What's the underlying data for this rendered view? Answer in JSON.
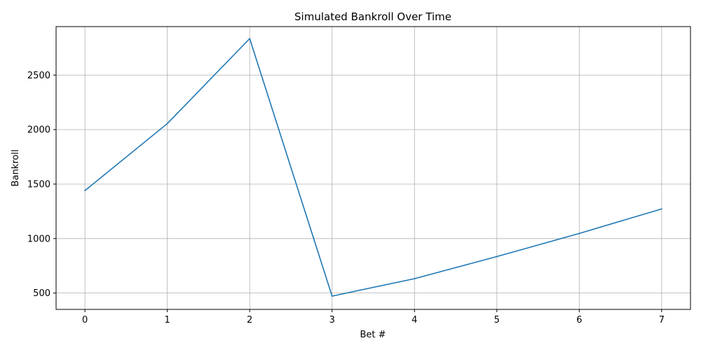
{
  "chart_data": {
    "type": "line",
    "title": "Simulated Bankroll Over Time",
    "xlabel": "Bet #",
    "ylabel": "Bankroll",
    "x": [
      0,
      1,
      2,
      3,
      4,
      5,
      6,
      7
    ],
    "series": [
      {
        "values": [
          1440,
          2055,
          2835,
          472,
          632,
          835,
          1047,
          1272
        ],
        "color": "#1f77b4"
      }
    ],
    "xlim": [
      -0.35,
      7.35
    ],
    "ylim": [
      350,
      2945
    ],
    "xticks": [
      0,
      1,
      2,
      3,
      4,
      5,
      6,
      7
    ],
    "yticks": [
      500,
      1000,
      1500,
      2000,
      2500
    ],
    "grid": true
  }
}
